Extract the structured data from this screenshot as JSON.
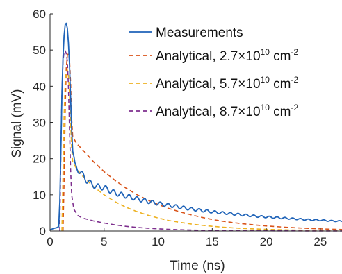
{
  "chart_data": {
    "type": "line",
    "title": "",
    "xlabel": "Time (ns)",
    "ylabel": "Signal (mV)",
    "xlim": [
      0,
      27
    ],
    "ylim": [
      0,
      60
    ],
    "x_ticks": [
      0,
      5,
      10,
      15,
      20,
      25
    ],
    "y_ticks": [
      0,
      10,
      20,
      30,
      40,
      50,
      60
    ],
    "legend_position": "top-right",
    "series": [
      {
        "name": "Measurements",
        "legend_prefix": "Measurements",
        "legend_sup": "",
        "legend_suffix": "",
        "style": "solid",
        "color": "#1f63b8",
        "points": [
          [
            0,
            0.3
          ],
          [
            0.3,
            0.7
          ],
          [
            0.6,
            0.9
          ],
          [
            0.8,
            1.2
          ],
          [
            0.9,
            8
          ],
          [
            1.0,
            22
          ],
          [
            1.1,
            38
          ],
          [
            1.2,
            48
          ],
          [
            1.3,
            54
          ],
          [
            1.4,
            57
          ],
          [
            1.5,
            57.4
          ],
          [
            1.6,
            56
          ],
          [
            1.7,
            52
          ],
          [
            1.8,
            46
          ],
          [
            1.9,
            37
          ],
          [
            2.0,
            28
          ],
          [
            2.1,
            22
          ],
          [
            2.3,
            18
          ],
          [
            2.6,
            17
          ],
          [
            3.0,
            15.5
          ],
          [
            3.4,
            14
          ],
          [
            3.8,
            13
          ],
          [
            4.3,
            12.3
          ],
          [
            5,
            12
          ],
          [
            6,
            10.5
          ],
          [
            7,
            9.7
          ],
          [
            8,
            8.9
          ],
          [
            9,
            8.2
          ],
          [
            10,
            7.6
          ],
          [
            11,
            7.1
          ],
          [
            12,
            6.6
          ],
          [
            13,
            6.1
          ],
          [
            14,
            5.7
          ],
          [
            15,
            5.3
          ],
          [
            16,
            5
          ],
          [
            17,
            4.7
          ],
          [
            18,
            4.4
          ],
          [
            19,
            4.1
          ],
          [
            20,
            3.9
          ],
          [
            21,
            3.7
          ],
          [
            22,
            3.5
          ],
          [
            23,
            3.3
          ],
          [
            24,
            3.1
          ],
          [
            25,
            3.0
          ],
          [
            26,
            2.8
          ],
          [
            27,
            2.7
          ]
        ],
        "oscillation": {
          "amplitude_mV": 0.9,
          "period_ns": 0.72,
          "start_ns": 2.1,
          "decay_ns": 14
        }
      },
      {
        "name": "Analytical, 2.7×10^10 cm^-2",
        "legend_prefix": "Analytical, 2.7×10",
        "legend_sup": "10",
        "legend_suffix": " cm",
        "legend_sup2": "-2",
        "style": "dashed",
        "color": "#d95319",
        "points": [
          [
            1.2,
            0
          ],
          [
            1.3,
            14
          ],
          [
            1.4,
            33
          ],
          [
            1.5,
            45
          ],
          [
            1.6,
            48.5
          ],
          [
            1.7,
            49
          ],
          [
            1.8,
            47.5
          ],
          [
            1.9,
            41
          ],
          [
            2.0,
            31
          ],
          [
            2.1,
            26
          ],
          [
            2.5,
            24
          ],
          [
            3,
            22.5
          ],
          [
            4,
            19.2
          ],
          [
            5,
            16.4
          ],
          [
            6,
            14
          ],
          [
            7,
            11.9
          ],
          [
            8,
            10.1
          ],
          [
            9,
            8.6
          ],
          [
            10,
            7.3
          ],
          [
            11,
            6.2
          ],
          [
            12,
            5.3
          ],
          [
            13,
            4.5
          ],
          [
            14,
            3.8
          ],
          [
            15,
            3.2
          ],
          [
            16,
            2.7
          ],
          [
            17,
            2.3
          ],
          [
            18,
            1.95
          ],
          [
            19,
            1.65
          ],
          [
            20,
            1.4
          ],
          [
            21,
            1.2
          ],
          [
            22,
            1.0
          ],
          [
            23,
            0.85
          ],
          [
            24,
            0.72
          ],
          [
            25,
            0.6
          ],
          [
            26,
            0.5
          ],
          [
            27,
            0.42
          ]
        ]
      },
      {
        "name": "Analytical, 5.7×10^10 cm^-2",
        "legend_prefix": "Analytical, 5.7×10",
        "legend_sup": "10",
        "legend_suffix": " cm",
        "legend_sup2": "-2",
        "style": "dashed",
        "color": "#edb120",
        "points": [
          [
            1.1,
            0
          ],
          [
            1.2,
            16
          ],
          [
            1.3,
            32
          ],
          [
            1.4,
            41
          ],
          [
            1.5,
            44
          ],
          [
            1.6,
            44.5
          ],
          [
            1.7,
            43
          ],
          [
            1.8,
            38
          ],
          [
            1.9,
            30
          ],
          [
            2.0,
            23
          ],
          [
            2.1,
            19
          ],
          [
            2.5,
            17
          ],
          [
            3,
            15.2
          ],
          [
            4,
            12.3
          ],
          [
            5,
            10
          ],
          [
            6,
            8.1
          ],
          [
            7,
            6.6
          ],
          [
            8,
            5.4
          ],
          [
            9,
            4.4
          ],
          [
            10,
            3.6
          ],
          [
            11,
            2.9
          ],
          [
            12,
            2.4
          ],
          [
            13,
            1.95
          ],
          [
            14,
            1.6
          ],
          [
            15,
            1.3
          ],
          [
            16,
            1.05
          ],
          [
            17,
            0.85
          ],
          [
            18,
            0.7
          ],
          [
            19,
            0.57
          ],
          [
            20,
            0.47
          ],
          [
            21,
            0.38
          ],
          [
            22,
            0.31
          ],
          [
            23,
            0.25
          ],
          [
            24,
            0.21
          ],
          [
            25,
            0.17
          ],
          [
            26,
            0.14
          ],
          [
            27,
            0.11
          ]
        ]
      },
      {
        "name": "Analytical, 8.7×10^10 cm^-2",
        "legend_prefix": "Analytical, 8.7×10",
        "legend_sup": "10",
        "legend_suffix": " cm",
        "legend_sup2": "-2",
        "style": "dashed",
        "color": "#7e2f8e",
        "points": [
          [
            0.9,
            0
          ],
          [
            1.0,
            22
          ],
          [
            1.1,
            38
          ],
          [
            1.2,
            47
          ],
          [
            1.3,
            49.5
          ],
          [
            1.4,
            49.8
          ],
          [
            1.5,
            49
          ],
          [
            1.6,
            47
          ],
          [
            1.7,
            40
          ],
          [
            1.8,
            28
          ],
          [
            1.9,
            17
          ],
          [
            2.0,
            10
          ],
          [
            2.2,
            6
          ],
          [
            2.6,
            4.2
          ],
          [
            3,
            3.6
          ],
          [
            4,
            2.8
          ],
          [
            5,
            2.2
          ],
          [
            6,
            1.7
          ],
          [
            7,
            1.3
          ],
          [
            8,
            1.0
          ],
          [
            9,
            0.78
          ],
          [
            10,
            0.6
          ],
          [
            11,
            0.46
          ],
          [
            12,
            0.36
          ],
          [
            13,
            0.28
          ],
          [
            14,
            0.22
          ],
          [
            15,
            0.17
          ],
          [
            16,
            0.13
          ],
          [
            17,
            0.1
          ],
          [
            18,
            0.08
          ],
          [
            20,
            0.05
          ],
          [
            22,
            0.03
          ],
          [
            24,
            0.02
          ],
          [
            27,
            0.01
          ]
        ]
      }
    ]
  }
}
